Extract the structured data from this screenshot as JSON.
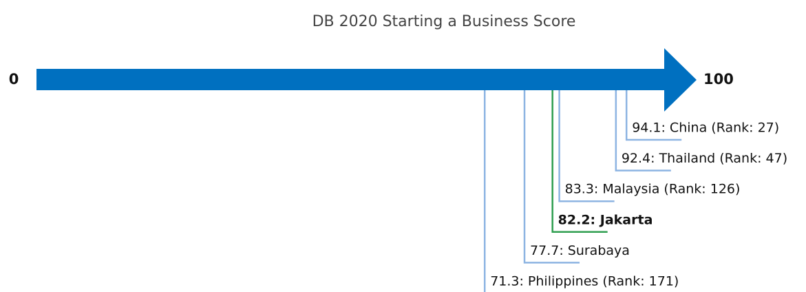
{
  "chart_data": {
    "type": "arrow-scale",
    "title": "DB 2020 Starting a Business Score",
    "xlim": [
      0,
      100
    ],
    "xticks": [
      0,
      100
    ],
    "arrow_color": "#0070c0",
    "categories": [
      "Philippines",
      "Surabaya",
      "Jakarta",
      "Malaysia",
      "Thailand",
      "China"
    ],
    "values": [
      71.3,
      77.7,
      82.2,
      83.3,
      92.4,
      94.1
    ],
    "value_labels": [
      "71.3: Philippines (Rank: 171)",
      "77.7: Surabaya",
      "82.2: Jakarta",
      "83.3: Malaysia (Rank: 126)",
      "92.4: Thailand (Rank: 47)",
      "94.1: China (Rank: 27)"
    ],
    "colors": [
      "#8db4e2",
      "#8db4e2",
      "#2e9e4f",
      "#8db4e2",
      "#8db4e2",
      "#8db4e2"
    ],
    "bold": [
      false,
      false,
      true,
      false,
      false,
      false
    ]
  }
}
